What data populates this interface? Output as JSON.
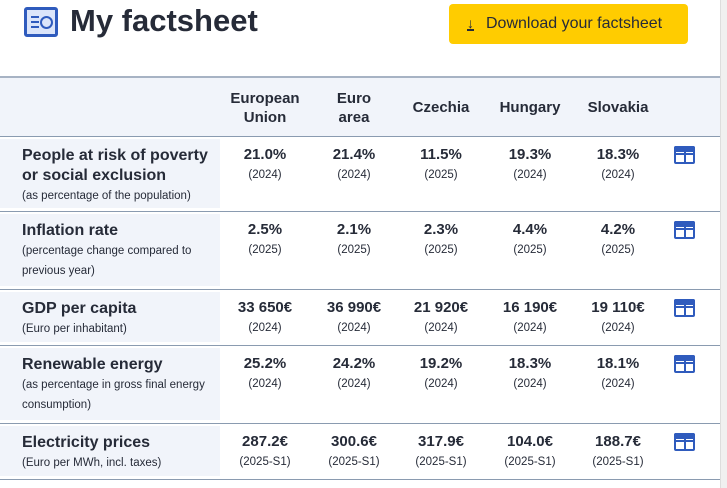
{
  "header": {
    "title": "My factsheet",
    "download_label": "Download your factsheet"
  },
  "columns": [
    "European\nUnion",
    "Euro\narea",
    "Czechia",
    "Hungary",
    "Slovakia"
  ],
  "rows": [
    {
      "name": "People at risk of poverty or social exclusion",
      "sub": "(as percentage of the population)",
      "values": [
        "21.0%",
        "21.4%",
        "11.5%",
        "19.3%",
        "18.3%"
      ],
      "years": [
        "(2024)",
        "(2024)",
        "(2025)",
        "(2024)",
        "(2024)"
      ]
    },
    {
      "name": "Inflation rate",
      "sub": "(percentage change compared to previous year)",
      "values": [
        "2.5%",
        "2.1%",
        "2.3%",
        "4.4%",
        "4.2%"
      ],
      "years": [
        "(2025)",
        "(2025)",
        "(2025)",
        "(2025)",
        "(2025)"
      ]
    },
    {
      "name": "GDP per capita",
      "sub": "(Euro per inhabitant)",
      "values": [
        "33 650€",
        "36 990€",
        "21 920€",
        "16 190€",
        "19 110€"
      ],
      "years": [
        "(2024)",
        "(2024)",
        "(2024)",
        "(2024)",
        "(2024)"
      ]
    },
    {
      "name": "Renewable energy",
      "sub": "(as percentage in gross final energy consumption)",
      "values": [
        "25.2%",
        "24.2%",
        "19.2%",
        "18.3%",
        "18.1%"
      ],
      "years": [
        "(2024)",
        "(2024)",
        "(2024)",
        "(2024)",
        "(2024)"
      ]
    },
    {
      "name": "Electricity prices",
      "sub": "(Euro per MWh, incl. taxes)",
      "values": [
        "287.2€",
        "300.6€",
        "317.9€",
        "104.0€",
        "188.7€"
      ],
      "years": [
        "(2025-S1)",
        "(2025-S1)",
        "(2025-S1)",
        "(2025-S1)",
        "(2025-S1)"
      ]
    }
  ]
}
